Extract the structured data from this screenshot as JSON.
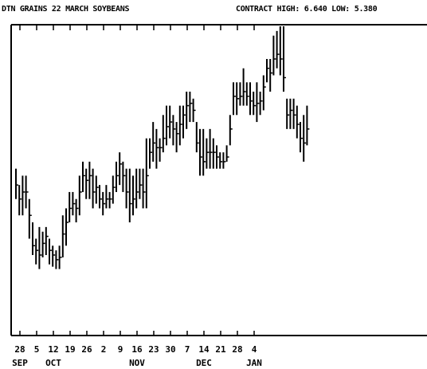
{
  "header": {
    "title": "DTN GRAINS 22 MARCH SOYBEANS",
    "contract": "CONTRACT HIGH: 6.640  LOW: 5.380"
  },
  "chart_data": {
    "type": "ohlc",
    "title": "DTN GRAINS 22 MARCH SOYBEANS",
    "contract_high": 6.64,
    "contract_low": 5.38,
    "grid": false,
    "ylim": [
      5.38,
      6.64
    ],
    "x_tick_labels": [
      "28",
      "5",
      "12",
      "19",
      "26",
      "2",
      "9",
      "16",
      "23",
      "30",
      "7",
      "14",
      "21",
      "28",
      "4"
    ],
    "month_labels": [
      {
        "label": "SEP",
        "tick_index": 0
      },
      {
        "label": "OCT",
        "tick_index": 2
      },
      {
        "label": "NOV",
        "tick_index": 7
      },
      {
        "label": "DEC",
        "tick_index": 11
      },
      {
        "label": "JAN",
        "tick_index": 14
      }
    ],
    "bars": [
      {
        "h": 6.03,
        "l": 5.9,
        "c": 5.96
      },
      {
        "h": 5.96,
        "l": 5.83,
        "c": 5.9
      },
      {
        "h": 6.0,
        "l": 5.83,
        "c": 5.93
      },
      {
        "h": 6.0,
        "l": 5.86,
        "c": 5.93
      },
      {
        "h": 5.9,
        "l": 5.73,
        "c": 5.83
      },
      {
        "h": 5.8,
        "l": 5.66,
        "c": 5.7
      },
      {
        "h": 5.73,
        "l": 5.62,
        "c": 5.68
      },
      {
        "h": 5.78,
        "l": 5.6,
        "c": 5.66
      },
      {
        "h": 5.76,
        "l": 5.65,
        "c": 5.71
      },
      {
        "h": 5.78,
        "l": 5.66,
        "c": 5.74
      },
      {
        "h": 5.73,
        "l": 5.62,
        "c": 5.68
      },
      {
        "h": 5.7,
        "l": 5.61,
        "c": 5.66
      },
      {
        "h": 5.68,
        "l": 5.6,
        "c": 5.64
      },
      {
        "h": 5.7,
        "l": 5.6,
        "c": 5.65
      },
      {
        "h": 5.83,
        "l": 5.65,
        "c": 5.75
      },
      {
        "h": 5.86,
        "l": 5.7,
        "c": 5.8
      },
      {
        "h": 5.93,
        "l": 5.8,
        "c": 5.86
      },
      {
        "h": 5.93,
        "l": 5.83,
        "c": 5.88
      },
      {
        "h": 5.9,
        "l": 5.8,
        "c": 5.86
      },
      {
        "h": 6.0,
        "l": 5.83,
        "c": 5.93
      },
      {
        "h": 6.06,
        "l": 5.93,
        "c": 6.0
      },
      {
        "h": 6.03,
        "l": 5.9,
        "c": 5.98
      },
      {
        "h": 6.06,
        "l": 5.9,
        "c": 6.0
      },
      {
        "h": 6.03,
        "l": 5.86,
        "c": 5.93
      },
      {
        "h": 6.0,
        "l": 5.88,
        "c": 5.95
      },
      {
        "h": 5.96,
        "l": 5.86,
        "c": 5.9
      },
      {
        "h": 5.93,
        "l": 5.83,
        "c": 5.88
      },
      {
        "h": 5.96,
        "l": 5.86,
        "c": 5.9
      },
      {
        "h": 5.93,
        "l": 5.86,
        "c": 5.9
      },
      {
        "h": 6.0,
        "l": 5.88,
        "c": 5.95
      },
      {
        "h": 6.06,
        "l": 5.93,
        "c": 6.0
      },
      {
        "h": 6.1,
        "l": 5.96,
        "c": 6.05
      },
      {
        "h": 6.06,
        "l": 5.93,
        "c": 6.0
      },
      {
        "h": 6.03,
        "l": 5.86,
        "c": 5.93
      },
      {
        "h": 6.03,
        "l": 5.8,
        "c": 5.88
      },
      {
        "h": 6.0,
        "l": 5.83,
        "c": 5.9
      },
      {
        "h": 6.03,
        "l": 5.86,
        "c": 5.93
      },
      {
        "h": 6.03,
        "l": 5.9,
        "c": 5.96
      },
      {
        "h": 6.03,
        "l": 5.86,
        "c": 5.93
      },
      {
        "h": 6.16,
        "l": 5.86,
        "c": 6.0
      },
      {
        "h": 6.16,
        "l": 6.03,
        "c": 6.1
      },
      {
        "h": 6.23,
        "l": 6.06,
        "c": 6.14
      },
      {
        "h": 6.2,
        "l": 6.03,
        "c": 6.12
      },
      {
        "h": 6.16,
        "l": 6.06,
        "c": 6.12
      },
      {
        "h": 6.26,
        "l": 6.1,
        "c": 6.16
      },
      {
        "h": 6.3,
        "l": 6.13,
        "c": 6.21
      },
      {
        "h": 6.3,
        "l": 6.16,
        "c": 6.23
      },
      {
        "h": 6.26,
        "l": 6.13,
        "c": 6.2
      },
      {
        "h": 6.23,
        "l": 6.1,
        "c": 6.18
      },
      {
        "h": 6.3,
        "l": 6.13,
        "c": 6.22
      },
      {
        "h": 6.3,
        "l": 6.16,
        "c": 6.26
      },
      {
        "h": 6.36,
        "l": 6.2,
        "c": 6.3
      },
      {
        "h": 6.36,
        "l": 6.23,
        "c": 6.31
      },
      {
        "h": 6.33,
        "l": 6.23,
        "c": 6.28
      },
      {
        "h": 6.23,
        "l": 6.1,
        "c": 6.14
      },
      {
        "h": 6.2,
        "l": 6.0,
        "c": 6.08
      },
      {
        "h": 6.2,
        "l": 6.0,
        "c": 6.06
      },
      {
        "h": 6.16,
        "l": 6.03,
        "c": 6.1
      },
      {
        "h": 6.2,
        "l": 6.03,
        "c": 6.1
      },
      {
        "h": 6.16,
        "l": 6.03,
        "c": 6.1
      },
      {
        "h": 6.13,
        "l": 6.03,
        "c": 6.08
      },
      {
        "h": 6.1,
        "l": 6.03,
        "c": 6.06
      },
      {
        "h": 6.1,
        "l": 6.03,
        "c": 6.06
      },
      {
        "h": 6.13,
        "l": 6.06,
        "c": 6.08
      },
      {
        "h": 6.26,
        "l": 6.13,
        "c": 6.2
      },
      {
        "h": 6.4,
        "l": 6.26,
        "c": 6.34
      },
      {
        "h": 6.4,
        "l": 6.26,
        "c": 6.33
      },
      {
        "h": 6.4,
        "l": 6.3,
        "c": 6.34
      },
      {
        "h": 6.46,
        "l": 6.3,
        "c": 6.36
      },
      {
        "h": 6.4,
        "l": 6.3,
        "c": 6.34
      },
      {
        "h": 6.4,
        "l": 6.26,
        "c": 6.32
      },
      {
        "h": 6.36,
        "l": 6.26,
        "c": 6.3
      },
      {
        "h": 6.4,
        "l": 6.23,
        "c": 6.31
      },
      {
        "h": 6.36,
        "l": 6.26,
        "c": 6.32
      },
      {
        "h": 6.43,
        "l": 6.28,
        "c": 6.38
      },
      {
        "h": 6.5,
        "l": 6.4,
        "c": 6.46
      },
      {
        "h": 6.5,
        "l": 6.36,
        "c": 6.44
      },
      {
        "h": 6.6,
        "l": 6.43,
        "c": 6.5
      },
      {
        "h": 6.62,
        "l": 6.46,
        "c": 6.52
      },
      {
        "h": 6.64,
        "l": 6.43,
        "c": 6.5
      },
      {
        "h": 6.64,
        "l": 6.36,
        "c": 6.42
      },
      {
        "h": 6.33,
        "l": 6.2,
        "c": 6.26
      },
      {
        "h": 6.33,
        "l": 6.2,
        "c": 6.28
      },
      {
        "h": 6.33,
        "l": 6.2,
        "c": 6.26
      },
      {
        "h": 6.3,
        "l": 6.16,
        "c": 6.22
      },
      {
        "h": 6.23,
        "l": 6.1,
        "c": 6.16
      },
      {
        "h": 6.26,
        "l": 6.06,
        "c": 6.14
      },
      {
        "h": 6.3,
        "l": 6.13,
        "c": 6.2
      }
    ]
  }
}
